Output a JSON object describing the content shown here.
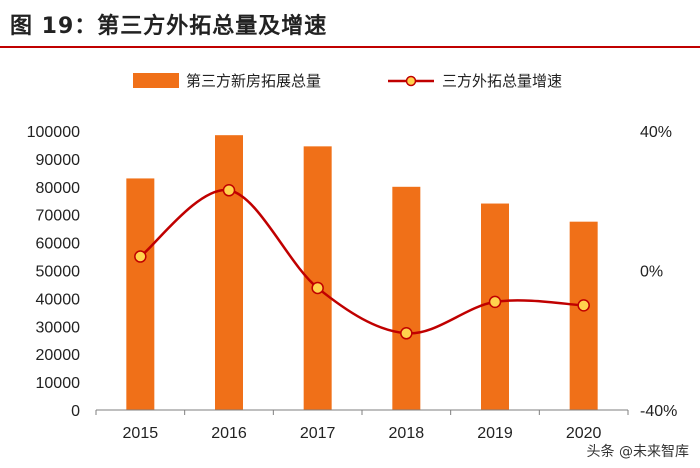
{
  "figure": {
    "title": "图 19：第三方外拓总量及增速"
  },
  "watermark": {
    "text": "头条 @未来智库"
  },
  "colors": {
    "bar": "#f07018",
    "line": "#c00000",
    "marker_fill": "#ffd34d",
    "rule": "#c00000"
  },
  "chart_data": {
    "type": "bar",
    "title": "图 19：第三方外拓总量及增速",
    "categories": [
      "2015",
      "2016",
      "2017",
      "2018",
      "2019",
      "2020"
    ],
    "series": [
      {
        "name": "第三方新房拓展总量",
        "type": "bar",
        "axis": "left",
        "values": [
          83000,
          98500,
          94500,
          80000,
          74000,
          67500
        ]
      },
      {
        "name": "三方外拓总量增速",
        "type": "line",
        "axis": "right",
        "unit": "%",
        "values": [
          4,
          23,
          -5,
          -18,
          -9,
          -10
        ]
      }
    ],
    "ylim": [
      0,
      100000
    ],
    "yticks": [
      "0",
      "10000",
      "20000",
      "30000",
      "40000",
      "50000",
      "60000",
      "70000",
      "80000",
      "90000",
      "100000"
    ],
    "y2lim": [
      -40,
      40
    ],
    "y2ticks": [
      "-40%",
      "0%",
      "40%"
    ],
    "legend": "top",
    "grid": false
  }
}
